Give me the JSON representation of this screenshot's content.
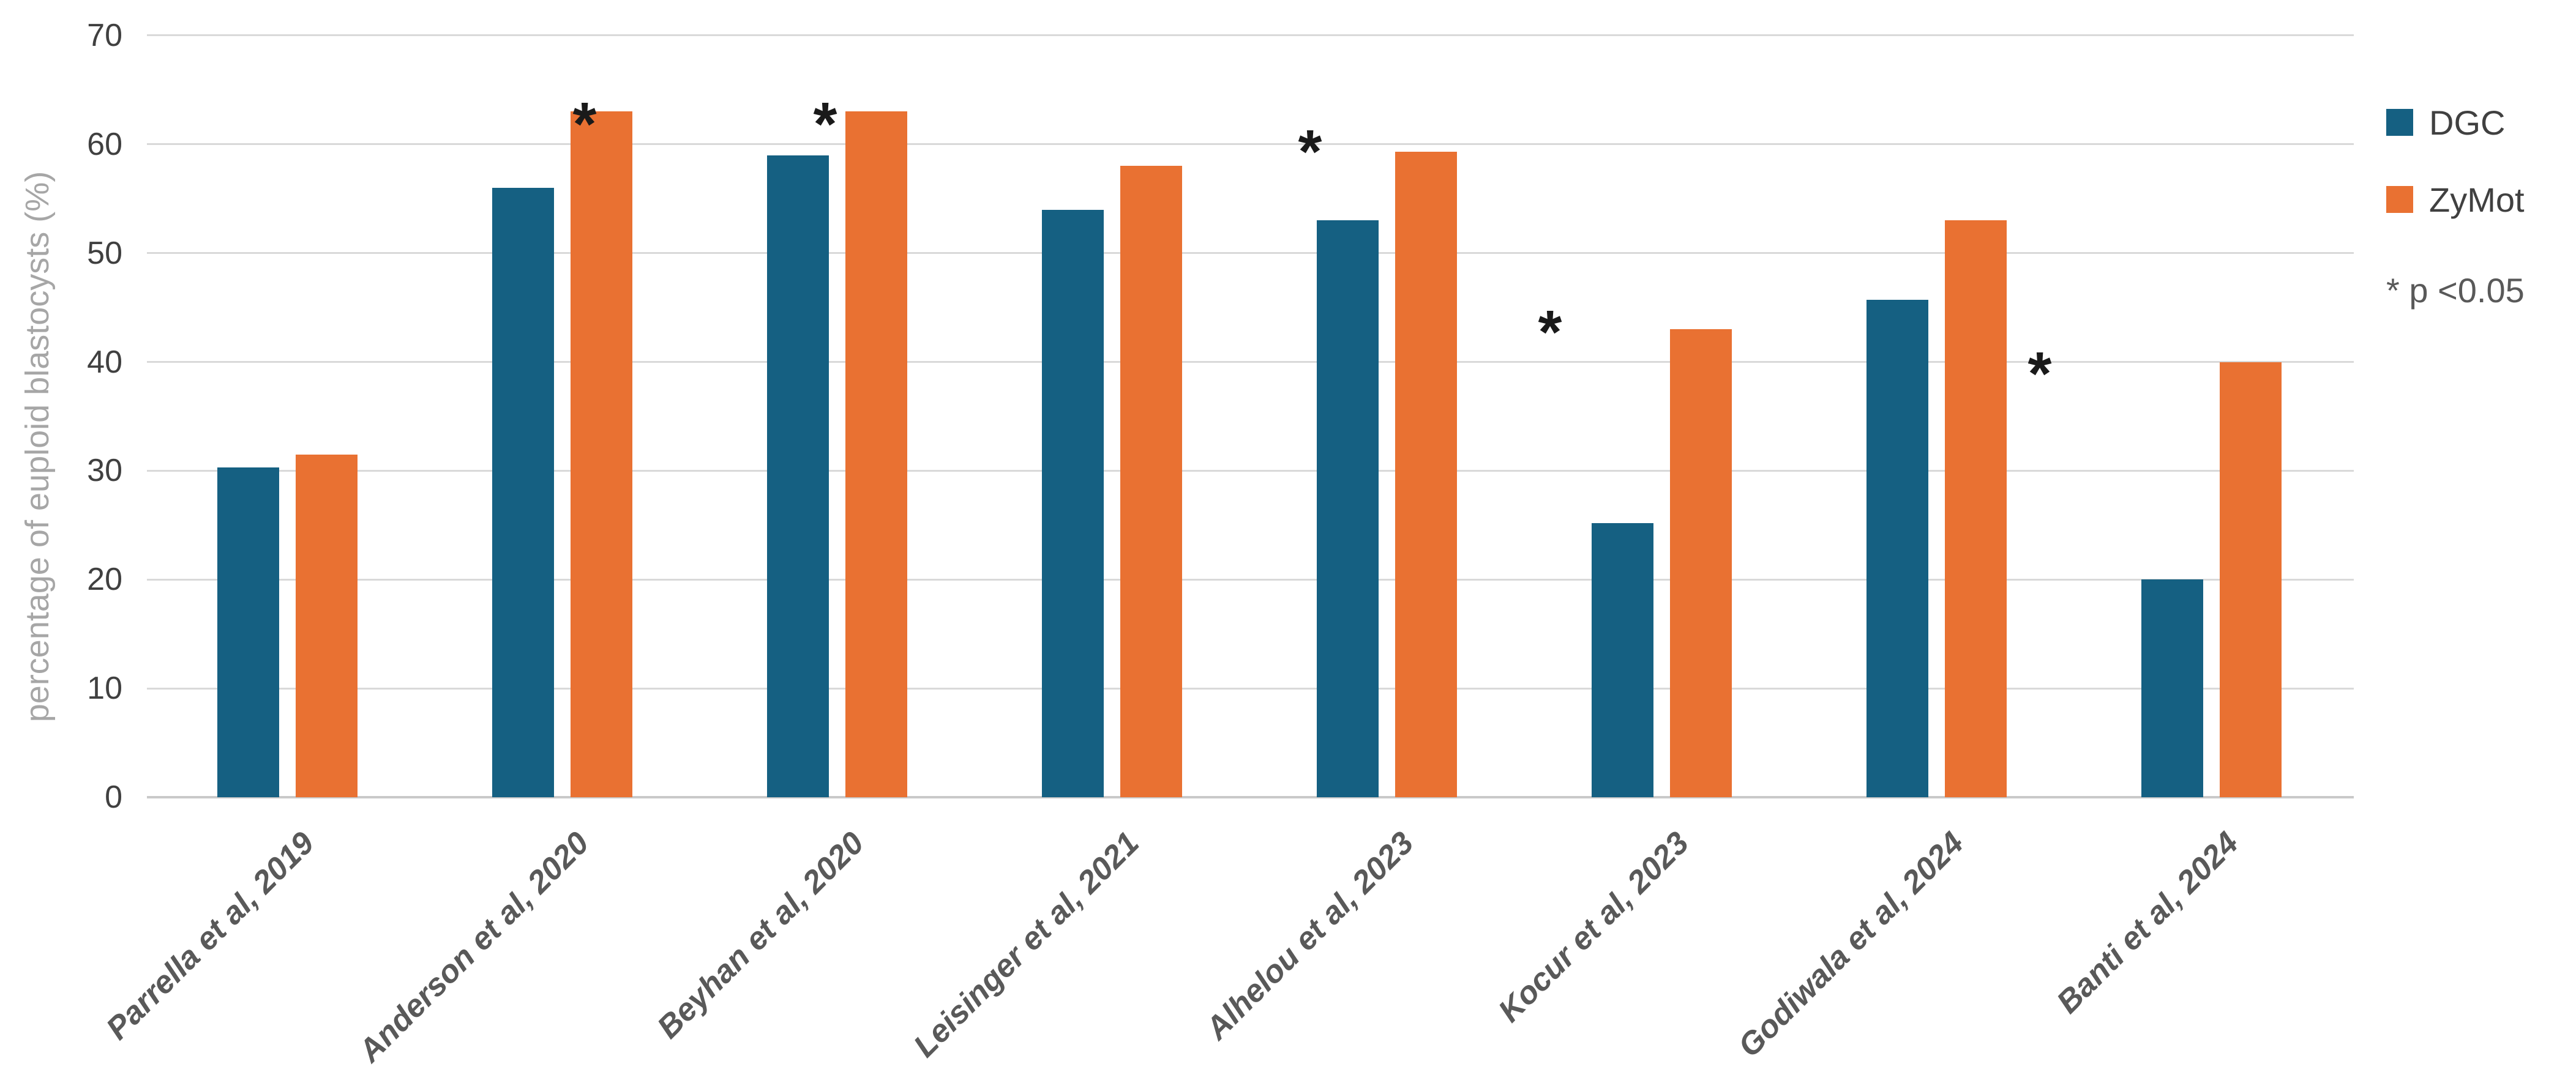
{
  "chart_data": {
    "type": "bar",
    "title": "",
    "categories": [
      "Parrella et al, 2019",
      "Anderson et al, 2020",
      "Beyhan et al, 2020",
      "Leisinger et al, 2021",
      "Alhelou et al, 2023",
      "Kocur et al, 2023",
      "Godiwala et al, 2024",
      "Banti et al, 2024"
    ],
    "series": [
      {
        "name": "DGC",
        "color": "#156082",
        "values": [
          30.3,
          56,
          59,
          54,
          53,
          25.2,
          45.7,
          20
        ]
      },
      {
        "name": "ZyMot",
        "color": "#E97132",
        "values": [
          31.5,
          63,
          63,
          58,
          59.3,
          43,
          53,
          40
        ]
      }
    ],
    "significant": [
      false,
      true,
      true,
      false,
      true,
      true,
      false,
      true
    ],
    "sig_marker": "*",
    "note": "* p <0.05",
    "xlabel": "",
    "ylabel": "percentage of euploid blastocysts (%)",
    "y_ticks": [
      0,
      10,
      20,
      30,
      40,
      50,
      60,
      70
    ],
    "ylim": [
      0,
      70
    ],
    "grid": true,
    "legend_position": "right"
  },
  "colors": {
    "grid": "#D9D9D9",
    "axis_line": "#C9C9C9",
    "tick_text": "#404040",
    "category_text": "#595959",
    "y_title_text": "#A6A6A6",
    "note_text": "#595959",
    "asterisk": "#1A1A1A",
    "background": "#FFFFFF"
  }
}
